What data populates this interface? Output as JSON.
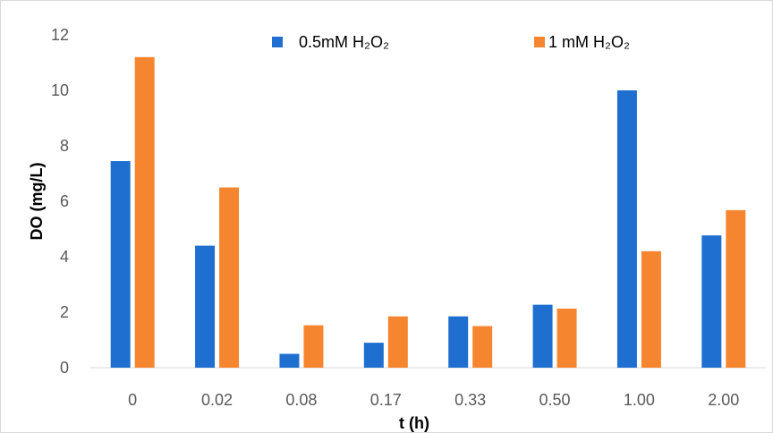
{
  "chart_data": {
    "type": "bar",
    "title": "",
    "xlabel": "t (h)",
    "ylabel": "DO (mg/L)",
    "ylim": [
      0,
      12
    ],
    "yticks": [
      0,
      2,
      4,
      6,
      8,
      10,
      12
    ],
    "ytick_labels": [
      "0",
      "2",
      "4",
      "6",
      "8",
      "10",
      "12"
    ],
    "categories": [
      "0",
      "0.02",
      "0.08",
      "0.17",
      "0.33",
      "0.50",
      "1.00",
      "2.00"
    ],
    "series": [
      {
        "name": "0.5mM H₂O₂",
        "color": "#1f6fd1",
        "values": [
          7.45,
          4.4,
          0.5,
          0.9,
          1.85,
          2.27,
          10.0,
          4.77
        ]
      },
      {
        "name": "1 mM H₂O₂",
        "color": "#f5862f",
        "values": [
          11.2,
          6.5,
          1.53,
          1.85,
          1.5,
          2.13,
          4.2,
          5.68
        ]
      }
    ],
    "grid": false,
    "legend_position": "top"
  }
}
